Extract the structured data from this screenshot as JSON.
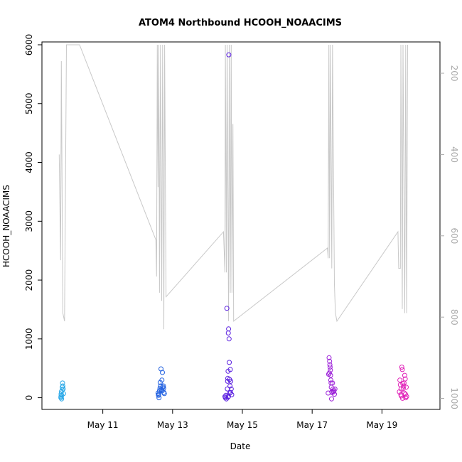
{
  "chart_data": {
    "type": "scatter",
    "title": "ATOM4 Northbound HCOOH_NOAACIMS",
    "xlabel": "Date",
    "ylabel": "HCOOH_NOAACIMS",
    "xlim": [
      "2018-05-09T12:00",
      "2018-05-20T12:00"
    ],
    "ylim": [
      -150,
      6000
    ],
    "x_ticks": [
      {
        "date": "2018-05-11",
        "label": "May 11"
      },
      {
        "date": "2018-05-13",
        "label": "May 13"
      },
      {
        "date": "2018-05-15",
        "label": "May 15"
      },
      {
        "date": "2018-05-17",
        "label": "May 17"
      },
      {
        "date": "2018-05-19",
        "label": "May 19"
      }
    ],
    "y_ticks": [
      0,
      1000,
      2000,
      3000,
      4000,
      5000,
      6000
    ],
    "y_tick_labels": [
      "0",
      "1000",
      "2000",
      "3000",
      "4000",
      "5000",
      "6000"
    ],
    "y2_axis": {
      "inverted": true,
      "range": [
        1020,
        130
      ],
      "ticks": [
        200,
        400,
        600,
        800,
        1000
      ],
      "tick_labels": [
        "200",
        "400",
        "600",
        "800",
        "1000"
      ],
      "color": "#aaaaaa"
    },
    "grid": false,
    "series": [
      {
        "color": "#29a8e8",
        "points": [
          [
            "2018-05-09T19:10",
            0
          ],
          [
            "2018-05-09T19:20",
            60
          ],
          [
            "2018-05-09T19:30",
            100
          ],
          [
            "2018-05-09T19:40",
            -20
          ],
          [
            "2018-05-09T19:50",
            40
          ],
          [
            "2018-05-09T20:00",
            130
          ],
          [
            "2018-05-09T20:10",
            180
          ],
          [
            "2018-05-09T20:20",
            250
          ],
          [
            "2018-05-09T20:30",
            200
          ],
          [
            "2018-05-09T20:45",
            150
          ],
          [
            "2018-05-09T21:00",
            70
          ],
          [
            "2018-05-09T19:15",
            20
          ]
        ]
      },
      {
        "color": "#1f5fe0",
        "points": [
          [
            "2018-05-12T14:00",
            80
          ],
          [
            "2018-05-12T14:20",
            40
          ],
          [
            "2018-05-12T14:40",
            0
          ],
          [
            "2018-05-12T15:00",
            120
          ],
          [
            "2018-05-12T15:20",
            160
          ],
          [
            "2018-05-12T15:40",
            200
          ],
          [
            "2018-05-12T16:00",
            490
          ],
          [
            "2018-05-12T16:20",
            140
          ],
          [
            "2018-05-12T16:40",
            300
          ],
          [
            "2018-05-12T17:00",
            430
          ],
          [
            "2018-05-12T17:20",
            180
          ],
          [
            "2018-05-12T17:40",
            200
          ],
          [
            "2018-05-12T18:00",
            90
          ],
          [
            "2018-05-12T18:20",
            70
          ],
          [
            "2018-05-12T15:30",
            260
          ],
          [
            "2018-05-12T16:50",
            120
          ],
          [
            "2018-05-12T14:30",
            60
          ],
          [
            "2018-05-12T17:50",
            160
          ]
        ]
      },
      {
        "color": "#5a1fe0",
        "points": [
          [
            "2018-05-14T12:00",
            20
          ],
          [
            "2018-05-14T12:20",
            0
          ],
          [
            "2018-05-14T12:40",
            40
          ],
          [
            "2018-05-14T13:00",
            -20
          ],
          [
            "2018-05-14T13:20",
            1520
          ],
          [
            "2018-05-14T13:40",
            150
          ],
          [
            "2018-05-14T14:00",
            330
          ],
          [
            "2018-05-14T14:10",
            450
          ],
          [
            "2018-05-14T14:20",
            1100
          ],
          [
            "2018-05-14T14:30",
            1170
          ],
          [
            "2018-05-14T14:40",
            5830
          ],
          [
            "2018-05-14T14:50",
            1000
          ],
          [
            "2018-05-14T15:00",
            600
          ],
          [
            "2018-05-14T15:10",
            310
          ],
          [
            "2018-05-14T15:20",
            80
          ],
          [
            "2018-05-14T15:40",
            480
          ],
          [
            "2018-05-14T16:00",
            280
          ],
          [
            "2018-05-14T16:20",
            150
          ],
          [
            "2018-05-14T16:40",
            50
          ],
          [
            "2018-05-14T14:05",
            10
          ],
          [
            "2018-05-14T13:50",
            280
          ],
          [
            "2018-05-14T14:25",
            20
          ],
          [
            "2018-05-14T15:30",
            200
          ],
          [
            "2018-05-14T15:50",
            90
          ]
        ]
      },
      {
        "color": "#9b1fd8",
        "points": [
          [
            "2018-05-17T11:00",
            80
          ],
          [
            "2018-05-17T11:20",
            400
          ],
          [
            "2018-05-17T11:40",
            680
          ],
          [
            "2018-05-17T12:00",
            620
          ],
          [
            "2018-05-17T12:10",
            560
          ],
          [
            "2018-05-17T12:20",
            520
          ],
          [
            "2018-05-17T12:30",
            470
          ],
          [
            "2018-05-17T12:40",
            380
          ],
          [
            "2018-05-17T12:50",
            300
          ],
          [
            "2018-05-17T13:00",
            250
          ],
          [
            "2018-05-17T13:10",
            180
          ],
          [
            "2018-05-17T13:20",
            -20
          ],
          [
            "2018-05-17T13:30",
            100
          ],
          [
            "2018-05-17T13:40",
            90
          ],
          [
            "2018-05-17T14:00",
            250
          ],
          [
            "2018-05-17T14:20",
            150
          ],
          [
            "2018-05-17T14:40",
            100
          ],
          [
            "2018-05-17T15:00",
            120
          ],
          [
            "2018-05-17T15:20",
            60
          ],
          [
            "2018-05-17T15:40",
            150
          ],
          [
            "2018-05-17T11:50",
            420
          ]
        ]
      },
      {
        "color": "#e020b8",
        "points": [
          [
            "2018-05-19T12:00",
            100
          ],
          [
            "2018-05-19T12:20",
            300
          ],
          [
            "2018-05-19T12:40",
            220
          ],
          [
            "2018-05-19T13:00",
            50
          ],
          [
            "2018-05-19T13:20",
            30
          ],
          [
            "2018-05-19T13:40",
            520
          ],
          [
            "2018-05-19T14:00",
            480
          ],
          [
            "2018-05-19T14:20",
            240
          ],
          [
            "2018-05-19T14:40",
            160
          ],
          [
            "2018-05-19T15:00",
            200
          ],
          [
            "2018-05-19T15:20",
            80
          ],
          [
            "2018-05-19T15:40",
            380
          ],
          [
            "2018-05-19T16:00",
            320
          ],
          [
            "2018-05-19T16:20",
            0
          ],
          [
            "2018-05-19T16:40",
            180
          ],
          [
            "2018-05-19T17:00",
            20
          ],
          [
            "2018-05-19T13:10",
            150
          ],
          [
            "2018-05-19T14:10",
            -10
          ],
          [
            "2018-05-19T15:10",
            250
          ],
          [
            "2018-05-19T16:10",
            60
          ]
        ]
      }
    ],
    "secondary_line": {
      "color": "#c8c8c8",
      "axis": "y2",
      "points": [
        [
          "2018-05-09T18:00",
          400
        ],
        [
          "2018-05-09T19:00",
          660
        ],
        [
          "2018-05-09T19:30",
          170
        ],
        [
          "2018-05-09T20:30",
          790
        ],
        [
          "2018-05-09T21:40",
          810
        ],
        [
          "2018-05-09T23:00",
          130
        ],
        [
          "2018-05-10T08:00",
          130
        ],
        [
          "2018-05-12T12:30",
          610
        ],
        [
          "2018-05-12T13:00",
          700
        ],
        [
          "2018-05-12T13:30",
          130
        ],
        [
          "2018-05-12T14:00",
          480
        ],
        [
          "2018-05-12T14:30",
          130
        ],
        [
          "2018-05-12T15:00",
          740
        ],
        [
          "2018-05-12T15:40",
          130
        ],
        [
          "2018-05-12T16:30",
          760
        ],
        [
          "2018-05-12T17:10",
          130
        ],
        [
          "2018-05-12T18:00",
          830
        ],
        [
          "2018-05-12T18:30",
          130
        ],
        [
          "2018-05-12T19:30",
          750
        ],
        [
          "2018-05-14T11:00",
          590
        ],
        [
          "2018-05-14T12:00",
          690
        ],
        [
          "2018-05-14T12:20",
          130
        ],
        [
          "2018-05-14T13:00",
          690
        ],
        [
          "2018-05-14T13:30",
          130
        ],
        [
          "2018-05-14T14:30",
          810
        ],
        [
          "2018-05-14T15:00",
          130
        ],
        [
          "2018-05-14T15:40",
          740
        ],
        [
          "2018-05-14T16:20",
          130
        ],
        [
          "2018-05-14T16:50",
          740
        ],
        [
          "2018-05-14T17:30",
          325
        ],
        [
          "2018-05-14T18:00",
          810
        ],
        [
          "2018-05-17T10:30",
          630
        ],
        [
          "2018-05-17T11:00",
          655
        ],
        [
          "2018-05-17T11:30",
          130
        ],
        [
          "2018-05-17T12:00",
          655
        ],
        [
          "2018-05-17T12:30",
          130
        ],
        [
          "2018-05-17T13:30",
          680
        ],
        [
          "2018-05-17T14:00",
          130
        ],
        [
          "2018-05-17T15:20",
          720
        ],
        [
          "2018-05-17T16:00",
          790
        ],
        [
          "2018-05-17T17:00",
          810
        ],
        [
          "2018-05-19T11:00",
          590
        ],
        [
          "2018-05-19T11:30",
          680
        ],
        [
          "2018-05-19T12:40",
          680
        ],
        [
          "2018-05-19T13:00",
          130
        ],
        [
          "2018-05-19T14:00",
          780
        ],
        [
          "2018-05-19T14:30",
          130
        ],
        [
          "2018-05-19T15:40",
          790
        ],
        [
          "2018-05-19T16:20",
          130
        ],
        [
          "2018-05-19T17:00",
          790
        ],
        [
          "2018-05-19T17:40",
          130
        ]
      ]
    }
  }
}
